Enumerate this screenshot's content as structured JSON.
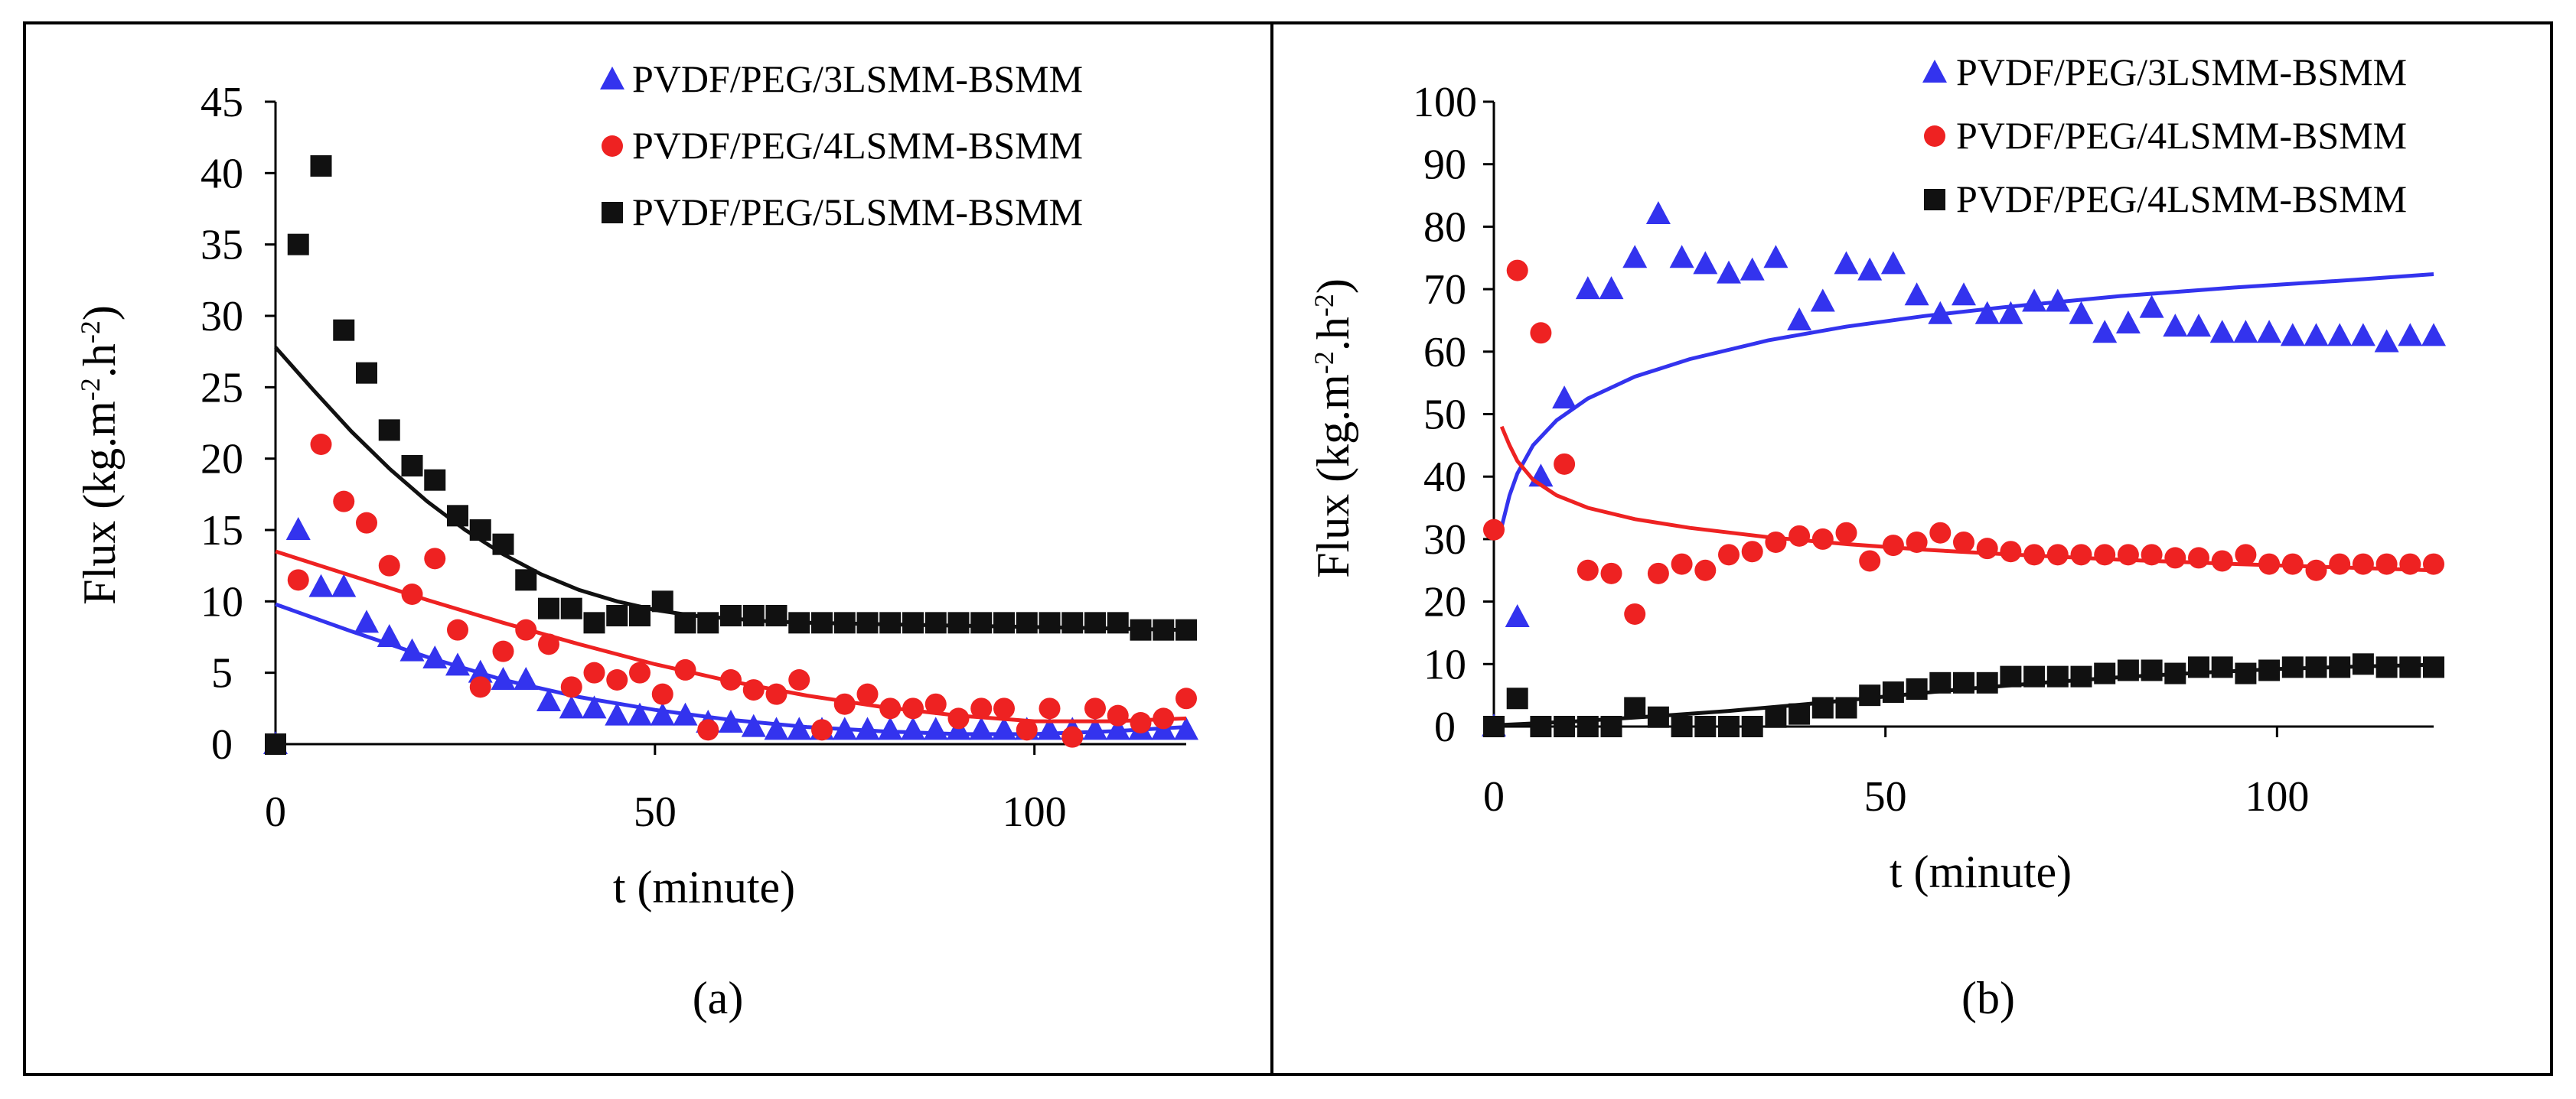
{
  "colors": {
    "blue": "#3333ee",
    "red": "#ee2222",
    "black": "#111111"
  },
  "chart_data": [
    {
      "type": "scatter",
      "caption": "(a)",
      "xlabel": "t (minute)",
      "ylabel_main": "Flux (kg.m",
      "ylabel_sup1": "-2",
      "ylabel_mid": ".h",
      "ylabel_sup2": "-2",
      "ylabel_end": ")",
      "xlim": [
        0,
        120
      ],
      "ylim": [
        0,
        45
      ],
      "xticks": [
        0,
        50,
        100
      ],
      "yticks": [
        0,
        5,
        10,
        15,
        20,
        25,
        30,
        35,
        40,
        45
      ],
      "legend_position": "top-right",
      "series": [
        {
          "name": "PVDF/PEG/3LSMM-BSMM",
          "color": "blue",
          "marker": "triangle",
          "x": [
            0,
            3,
            6,
            9,
            12,
            15,
            18,
            21,
            24,
            27,
            30,
            33,
            36,
            39,
            42,
            45,
            48,
            51,
            54,
            57,
            60,
            63,
            66,
            69,
            72,
            75,
            78,
            81,
            84,
            87,
            90,
            93,
            96,
            99,
            102,
            105,
            108,
            111,
            114,
            117,
            120
          ],
          "y": [
            0,
            15,
            11,
            11,
            8.5,
            7.5,
            6.5,
            6,
            5.5,
            5,
            4.5,
            4.5,
            3,
            2.5,
            2.5,
            2,
            2,
            2,
            2,
            1.5,
            1.5,
            1.2,
            1,
            1,
            1,
            1,
            1,
            1,
            1,
            1,
            1,
            1,
            1,
            1,
            1,
            1,
            1,
            1,
            1,
            1,
            1
          ],
          "fit_x": [
            0,
            10,
            20,
            30,
            40,
            50,
            60,
            70,
            80,
            90,
            100,
            110,
            120
          ],
          "fit_y": [
            9.8,
            7.9,
            6.1,
            4.5,
            3.3,
            2.4,
            1.7,
            1.2,
            0.9,
            0.7,
            0.7,
            0.9,
            1.2
          ]
        },
        {
          "name": "PVDF/PEG/4LSMM-BSMM",
          "color": "red",
          "marker": "circle",
          "x": [
            0,
            3,
            6,
            9,
            12,
            15,
            18,
            21,
            24,
            27,
            30,
            33,
            36,
            39,
            42,
            45,
            48,
            51,
            54,
            57,
            60,
            63,
            66,
            69,
            72,
            75,
            78,
            81,
            84,
            87,
            90,
            93,
            96,
            99,
            102,
            105,
            108,
            111,
            114,
            117,
            120
          ],
          "y": [
            0,
            11.5,
            21,
            17,
            15.5,
            12.5,
            10.5,
            13,
            8,
            4,
            6.5,
            8,
            7,
            4,
            5,
            4.5,
            5,
            3.5,
            5.2,
            1,
            4.5,
            3.8,
            3.5,
            4.5,
            1,
            2.8,
            3.5,
            2.5,
            2.5,
            2.8,
            1.8,
            2.5,
            2.5,
            1,
            2.5,
            0.5,
            2.5,
            2,
            1.5,
            1.8,
            3.2
          ],
          "fit_x": [
            0,
            10,
            20,
            30,
            40,
            50,
            60,
            70,
            80,
            90,
            100,
            110,
            120
          ],
          "fit_y": [
            13.5,
            11.8,
            10.1,
            8.5,
            7,
            5.6,
            4.4,
            3.4,
            2.6,
            2,
            1.6,
            1.6,
            1.8
          ]
        },
        {
          "name": "PVDF/PEG/5LSMM-BSMM",
          "color": "black",
          "marker": "square",
          "x": [
            0,
            3,
            6,
            9,
            12,
            15,
            18,
            21,
            24,
            27,
            30,
            33,
            36,
            39,
            42,
            45,
            48,
            51,
            54,
            57,
            60,
            63,
            66,
            69,
            72,
            75,
            78,
            81,
            84,
            87,
            90,
            93,
            96,
            99,
            102,
            105,
            108,
            111,
            114,
            117,
            120
          ],
          "y": [
            0,
            35,
            40.5,
            29,
            26,
            22,
            19.5,
            18.5,
            16,
            15,
            14,
            11.5,
            9.5,
            9.5,
            8.5,
            9,
            9,
            10,
            8.5,
            8.5,
            9,
            9,
            9,
            8.5,
            8.5,
            8.5,
            8.5,
            8.5,
            8.5,
            8.5,
            8.5,
            8.5,
            8.5,
            8.5,
            8.5,
            8.5,
            8.5,
            8.5,
            8,
            8,
            8
          ],
          "fit_x": [
            0,
            5,
            10,
            15,
            20,
            25,
            30,
            35,
            40,
            45,
            50,
            55,
            60,
            65,
            70,
            80,
            90,
            100,
            110,
            120
          ],
          "fit_y": [
            27.8,
            24.8,
            21.9,
            19.3,
            17,
            15,
            13.3,
            11.9,
            10.8,
            10,
            9.4,
            9,
            8.8,
            8.6,
            8.5,
            8.4,
            8.3,
            8.2,
            8.1,
            8
          ]
        }
      ]
    },
    {
      "type": "scatter",
      "caption": "(b)",
      "xlabel": "t (minute)",
      "ylabel_main": "Flux (kg.m",
      "ylabel_sup1": "-2",
      "ylabel_mid": ".h",
      "ylabel_sup2": "-2",
      "ylabel_end": ")",
      "xlim": [
        0,
        120
      ],
      "ylim": [
        0,
        100
      ],
      "xticks": [
        0,
        50,
        100
      ],
      "yticks": [
        0,
        10,
        20,
        30,
        40,
        50,
        60,
        70,
        80,
        90,
        100
      ],
      "legend_position": "top-right",
      "series": [
        {
          "name": "PVDF/PEG/3LSMM-BSMM",
          "color": "blue",
          "marker": "triangle",
          "x": [
            0,
            3,
            6,
            9,
            12,
            15,
            18,
            21,
            24,
            27,
            30,
            33,
            36,
            39,
            42,
            45,
            48,
            51,
            54,
            57,
            60,
            63,
            66,
            69,
            72,
            75,
            78,
            81,
            84,
            87,
            90,
            93,
            96,
            99,
            102,
            105,
            108,
            111,
            114,
            117,
            120
          ],
          "y": [
            0,
            17.5,
            40,
            52.5,
            70,
            70,
            75,
            82,
            75,
            74,
            72.5,
            73,
            75,
            65,
            68,
            74,
            73,
            74,
            69,
            66,
            69,
            66,
            66,
            68,
            68,
            66,
            63,
            64.5,
            67,
            64,
            64,
            63,
            63,
            63,
            62.5,
            62.5,
            62.5,
            62.5,
            61.5,
            62.5,
            62.5
          ],
          "fit_x": [
            1,
            2,
            3,
            5,
            8,
            12,
            18,
            25,
            35,
            45,
            55,
            65,
            80,
            95,
            110,
            120
          ],
          "fit_y": [
            32,
            37,
            40.5,
            45,
            49,
            52.5,
            56,
            58.8,
            61.8,
            64,
            65.7,
            67.1,
            68.9,
            70.3,
            71.5,
            72.4
          ]
        },
        {
          "name": "PVDF/PEG/4LSMM-BSMM",
          "color": "red",
          "marker": "circle",
          "x": [
            0,
            3,
            6,
            9,
            12,
            15,
            18,
            21,
            24,
            27,
            30,
            33,
            36,
            39,
            42,
            45,
            48,
            51,
            54,
            57,
            60,
            63,
            66,
            69,
            72,
            75,
            78,
            81,
            84,
            87,
            90,
            93,
            96,
            99,
            102,
            105,
            108,
            111,
            114,
            117,
            120
          ],
          "y": [
            31.5,
            73,
            63,
            42,
            25,
            24.5,
            18,
            24.5,
            26,
            25,
            27.5,
            28,
            29.5,
            30.5,
            30,
            31,
            26.5,
            29,
            29.5,
            31,
            29.5,
            28.5,
            28,
            27.5,
            27.5,
            27.5,
            27.5,
            27.5,
            27.5,
            27,
            27,
            26.5,
            27.5,
            26,
            26,
            25,
            26,
            26,
            26,
            26,
            26
          ],
          "fit_x": [
            1,
            2,
            3,
            5,
            8,
            12,
            18,
            25,
            35,
            45,
            55,
            65,
            80,
            95,
            110,
            120
          ],
          "fit_y": [
            48,
            45,
            42.5,
            39.5,
            37,
            35,
            33.2,
            31.8,
            30.3,
            29.2,
            28.3,
            27.6,
            26.7,
            26,
            25.4,
            25
          ]
        },
        {
          "name": "PVDF/PEG/4LSMM-BSMM",
          "color": "black",
          "marker": "square",
          "x": [
            0,
            3,
            6,
            9,
            12,
            15,
            18,
            21,
            24,
            27,
            30,
            33,
            36,
            39,
            42,
            45,
            48,
            51,
            54,
            57,
            60,
            63,
            66,
            69,
            72,
            75,
            78,
            81,
            84,
            87,
            90,
            93,
            96,
            99,
            102,
            105,
            108,
            111,
            114,
            117,
            120
          ],
          "y": [
            0,
            4.5,
            0,
            0,
            0,
            0,
            3,
            1.5,
            0,
            0,
            0,
            0,
            1.5,
            2,
            3,
            3,
            5,
            5.5,
            6,
            7,
            7,
            7,
            8,
            8,
            8,
            8,
            8.5,
            9,
            9,
            8.5,
            9.5,
            9.5,
            8.5,
            9,
            9.5,
            9.5,
            9.5,
            10,
            9.5,
            9.5,
            9.5
          ],
          "fit_x": [
            0,
            10,
            20,
            30,
            40,
            50,
            60,
            70,
            80,
            90,
            100,
            110,
            120
          ],
          "fit_y": [
            0.2,
            0.8,
            1.6,
            2.5,
            3.6,
            4.8,
            6,
            7,
            7.9,
            8.6,
            9.2,
            9.6,
            9.9
          ]
        }
      ]
    }
  ]
}
